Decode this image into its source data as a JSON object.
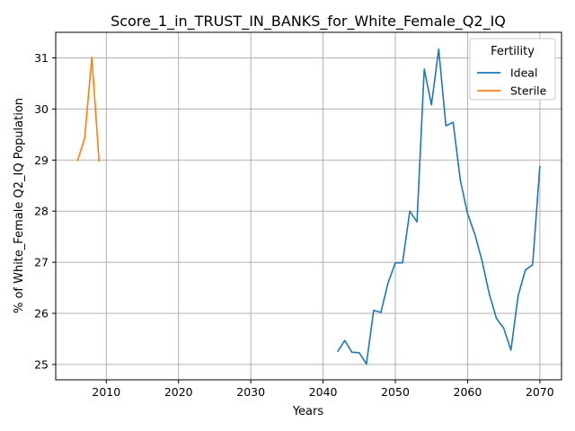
{
  "chart_data": {
    "type": "line",
    "title": "Score_1_in_TRUST_IN_BANKS_for_White_Female_Q2_IQ",
    "xlabel": "Years",
    "ylabel": "% of White_Female Q2_IQ Population",
    "xlim": [
      2003,
      2073
    ],
    "ylim": [
      24.7,
      31.5
    ],
    "xticks": [
      2010,
      2020,
      2030,
      2040,
      2050,
      2060,
      2070
    ],
    "yticks": [
      25,
      26,
      27,
      28,
      29,
      30,
      31
    ],
    "grid": true,
    "legend": {
      "title": "Fertility",
      "position": "top-right"
    },
    "series": [
      {
        "name": "Ideal",
        "color": "#1f77b4",
        "x": [
          2042,
          2043,
          2044,
          2045,
          2046,
          2047,
          2048,
          2049,
          2050,
          2051,
          2052,
          2053,
          2054,
          2055,
          2056,
          2057,
          2058,
          2059,
          2060,
          2061,
          2062,
          2063,
          2064,
          2065,
          2066,
          2067,
          2068,
          2069,
          2070
        ],
        "y": [
          25.25,
          25.47,
          25.24,
          25.23,
          25.01,
          26.06,
          26.02,
          26.6,
          26.99,
          26.99,
          28.0,
          27.79,
          30.78,
          30.08,
          31.17,
          29.67,
          29.74,
          28.6,
          27.95,
          27.55,
          27.03,
          26.38,
          25.9,
          25.71,
          25.28,
          26.35,
          26.85,
          26.95,
          28.88
        ]
      },
      {
        "name": "Sterile",
        "color": "#ff7f0e",
        "x": [
          2006,
          2007,
          2008,
          2009
        ],
        "y": [
          28.98,
          29.42,
          31.01,
          28.97
        ]
      }
    ]
  }
}
